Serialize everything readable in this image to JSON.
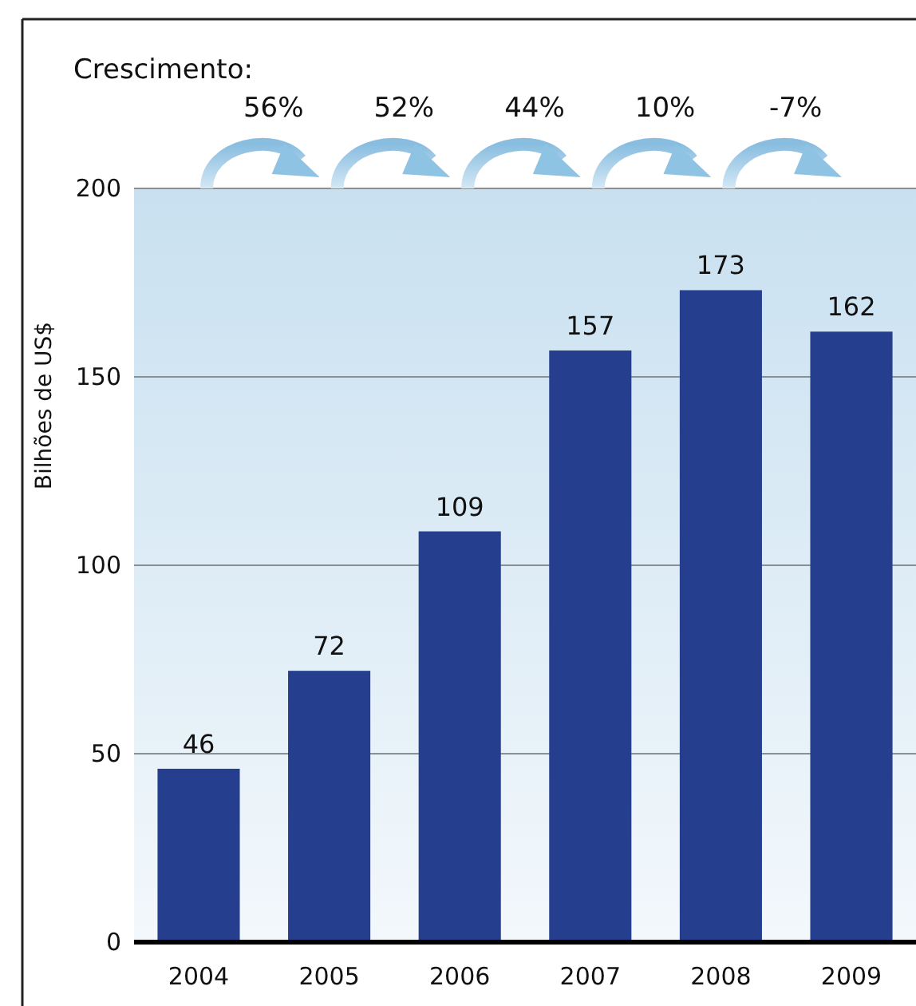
{
  "chart_data": {
    "type": "bar",
    "ylabel": "Bilhões de US$",
    "categories": [
      "2004",
      "2005",
      "2006",
      "2007",
      "2008",
      "2009"
    ],
    "values": [
      46,
      72,
      109,
      157,
      173,
      162
    ],
    "color": "#253f8e",
    "ylim": [
      0,
      200
    ],
    "yticks": [
      0,
      50,
      100,
      150,
      200
    ],
    "grid": "y",
    "data_labels": true,
    "annotations": [
      "Crescimento:",
      "56%",
      "52%",
      "44%",
      "10%",
      "-7%"
    ]
  }
}
